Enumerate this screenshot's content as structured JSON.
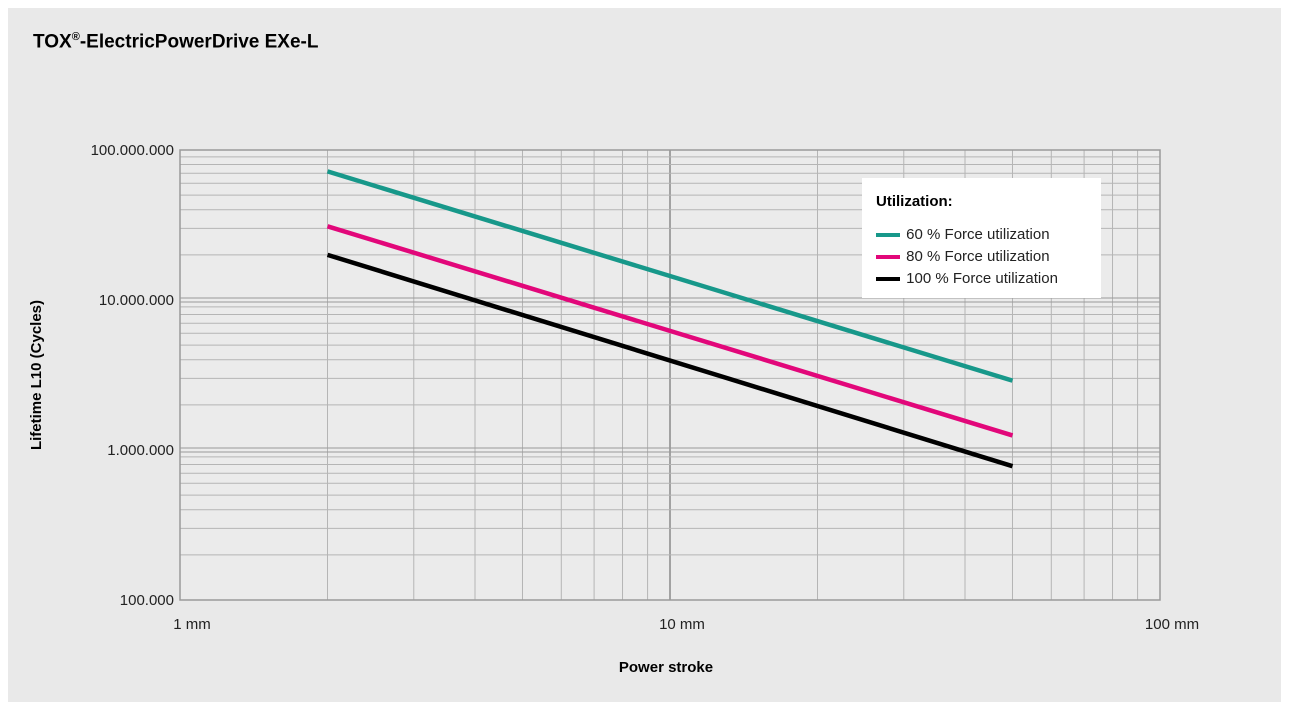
{
  "page": {
    "title_main": "TOX",
    "title_reg": "®",
    "title_rest": "-ElectricPowerDrive EXe-L"
  },
  "chart_data": {
    "type": "line",
    "xscale": "log",
    "yscale": "log",
    "xlim": [
      1,
      100
    ],
    "ylim": [
      100000,
      100000000
    ],
    "xlabel": "Power stroke",
    "ylabel": "Lifetime L10 (Cycles)",
    "x_ticks": [
      {
        "value": 1,
        "label": "1 mm"
      },
      {
        "value": 10,
        "label": "10 mm"
      },
      {
        "value": 100,
        "label": "100 mm"
      }
    ],
    "y_ticks": [
      {
        "value": 100000,
        "label": "100.000"
      },
      {
        "value": 1000000,
        "label": "1.000.000"
      },
      {
        "value": 10000000,
        "label": "10.000.000"
      },
      {
        "value": 100000000,
        "label": "100.000.000"
      }
    ],
    "grid": true,
    "legend_title": "Utilization:",
    "legend_position": "top-right",
    "series": [
      {
        "name": "60 % Force utilization",
        "color": "#17988a",
        "x": [
          2,
          50
        ],
        "y": [
          72000000,
          2900000
        ]
      },
      {
        "name": "80 % Force utilization",
        "color": "#e2077a",
        "x": [
          2,
          50
        ],
        "y": [
          31000000,
          1250000
        ]
      },
      {
        "name": "100 % Force utilization",
        "color": "#000000",
        "x": [
          2,
          50
        ],
        "y": [
          20000000,
          780000
        ]
      }
    ]
  }
}
